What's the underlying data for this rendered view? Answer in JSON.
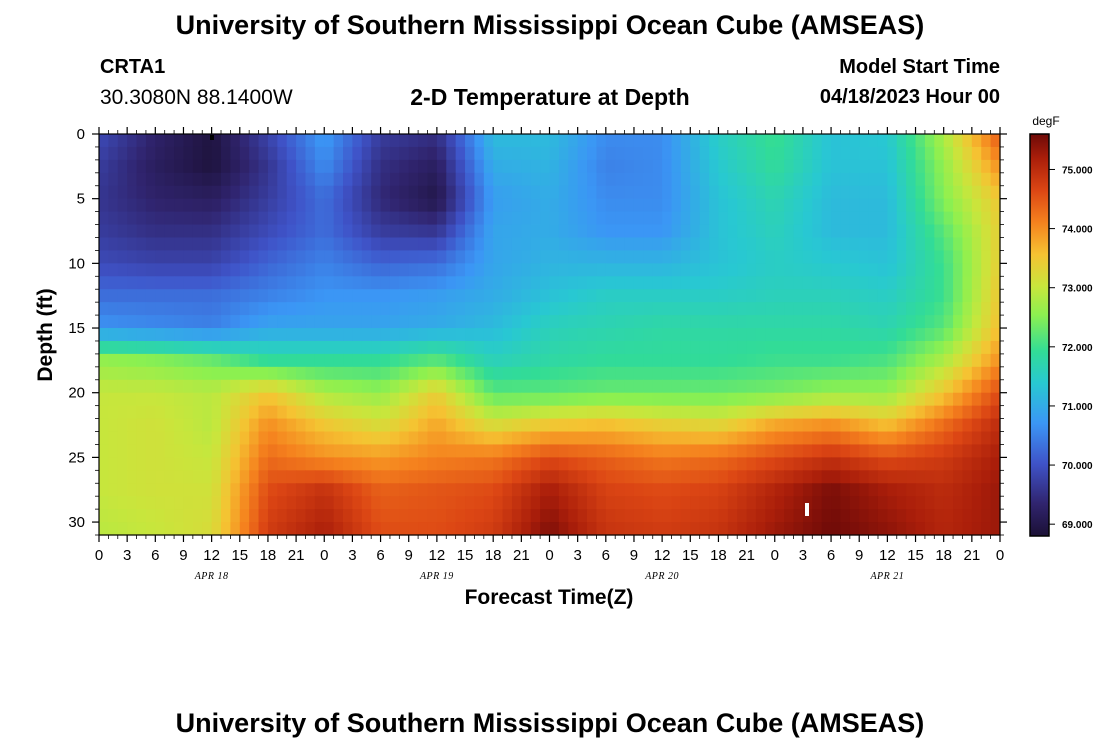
{
  "header": {
    "title": "University of Southern Mississippi Ocean Cube (AMSEAS)",
    "station_name": "CRTA1",
    "station_coords": "30.3080N  88.1400W",
    "plot_title": "2-D Temperature at Depth",
    "start_label": "Model Start Time",
    "start_value": "04/18/2023 Hour 00"
  },
  "footer": {
    "title": "University of Southern Mississippi Ocean Cube (AMSEAS)"
  },
  "chart_data": {
    "type": "heatmap",
    "title": "2-D Temperature at Depth",
    "xlabel": "Forecast Time(Z)",
    "ylabel": "Depth (ft)",
    "x_hours_range": [
      0,
      96
    ],
    "x_step_hours": 3,
    "x_tick_labels": [
      "0",
      "3",
      "6",
      "9",
      "12",
      "15",
      "18",
      "21",
      "0",
      "3",
      "6",
      "9",
      "12",
      "15",
      "18",
      "21",
      "0",
      "3",
      "6",
      "9",
      "12",
      "15",
      "18",
      "21",
      "0",
      "3",
      "6",
      "9",
      "12",
      "15",
      "18",
      "21",
      "0"
    ],
    "date_labels": [
      {
        "label": "APR 18",
        "hour": 12
      },
      {
        "label": "APR 19",
        "hour": 36
      },
      {
        "label": "APR 20",
        "hour": 60
      },
      {
        "label": "APR 21",
        "hour": 84
      }
    ],
    "y_ticks": [
      0,
      5,
      10,
      15,
      20,
      25,
      30
    ],
    "ylim": [
      0,
      31
    ],
    "y_inverted": true,
    "colorbar": {
      "unit": "degF",
      "min": 68.8,
      "max": 75.6,
      "ticks": [
        "69.000",
        "70.000",
        "71.000",
        "72.000",
        "73.000",
        "74.000",
        "75.000"
      ],
      "tick_values": [
        69,
        70,
        71,
        72,
        73,
        74,
        75
      ]
    },
    "depths_ft": [
      0,
      2.5,
      5,
      7.5,
      10,
      12.5,
      15,
      17.5,
      20,
      22.5,
      25,
      27.5,
      31
    ],
    "times_h": [
      0,
      6,
      12,
      18,
      24,
      30,
      36,
      42,
      48,
      54,
      60,
      66,
      72,
      78,
      84,
      90,
      96
    ],
    "temperatures_degF": [
      [
        69.9,
        69.3,
        68.9,
        69.8,
        70.8,
        69.7,
        69.5,
        71.2,
        71.2,
        70.6,
        70.6,
        71.5,
        72.0,
        71.3,
        71.4,
        72.8,
        74.5
      ],
      [
        69.7,
        69.2,
        68.9,
        69.6,
        70.6,
        69.5,
        69.2,
        71.0,
        71.1,
        70.5,
        70.6,
        71.4,
        71.9,
        71.3,
        71.3,
        72.6,
        74.0
      ],
      [
        69.6,
        69.3,
        69.2,
        69.7,
        70.3,
        69.4,
        69.0,
        70.8,
        71.0,
        70.6,
        70.6,
        71.3,
        71.7,
        71.2,
        71.2,
        72.5,
        73.5
      ],
      [
        69.7,
        69.5,
        69.5,
        69.9,
        70.3,
        69.7,
        69.6,
        70.9,
        71.0,
        70.7,
        70.7,
        71.3,
        71.6,
        71.2,
        71.2,
        72.2,
        73.4
      ],
      [
        69.9,
        69.8,
        69.8,
        70.2,
        70.5,
        70.2,
        70.3,
        70.9,
        71.1,
        71.1,
        71.1,
        71.3,
        71.5,
        71.4,
        71.3,
        72.0,
        73.4
      ],
      [
        70.3,
        70.3,
        70.3,
        70.5,
        70.7,
        70.7,
        70.8,
        71.0,
        71.3,
        71.5,
        71.5,
        71.5,
        71.6,
        71.6,
        71.5,
        72.0,
        73.5
      ],
      [
        70.7,
        70.6,
        70.5,
        70.9,
        70.9,
        70.9,
        71.0,
        71.2,
        71.6,
        71.7,
        71.8,
        71.8,
        71.8,
        71.8,
        71.7,
        72.2,
        73.6
      ],
      [
        72.6,
        72.5,
        72.3,
        71.9,
        71.9,
        71.9,
        72.2,
        71.6,
        71.8,
        71.9,
        71.9,
        71.9,
        72.0,
        72.0,
        72.1,
        72.8,
        74.0
      ],
      [
        73.0,
        73.0,
        72.9,
        73.5,
        72.8,
        72.6,
        73.4,
        72.2,
        72.2,
        72.3,
        72.3,
        72.3,
        72.4,
        72.6,
        72.6,
        73.5,
        74.6
      ],
      [
        73.0,
        73.1,
        72.9,
        74.0,
        73.5,
        73.2,
        73.8,
        73.2,
        73.5,
        73.6,
        73.4,
        73.3,
        73.8,
        74.0,
        73.6,
        74.3,
        75.0
      ],
      [
        73.0,
        73.1,
        73.0,
        74.3,
        74.0,
        73.9,
        74.1,
        74.2,
        74.6,
        74.4,
        74.2,
        74.3,
        74.6,
        74.9,
        74.6,
        74.8,
        75.2
      ],
      [
        73.0,
        73.1,
        73.1,
        74.6,
        74.9,
        74.4,
        74.5,
        74.6,
        75.2,
        74.7,
        74.6,
        74.7,
        75.1,
        75.5,
        75.2,
        75.0,
        75.3
      ],
      [
        72.9,
        73.0,
        73.2,
        74.8,
        75.2,
        74.6,
        74.6,
        74.8,
        75.5,
        74.9,
        74.8,
        74.9,
        75.3,
        75.6,
        75.4,
        75.1,
        75.3
      ]
    ]
  }
}
